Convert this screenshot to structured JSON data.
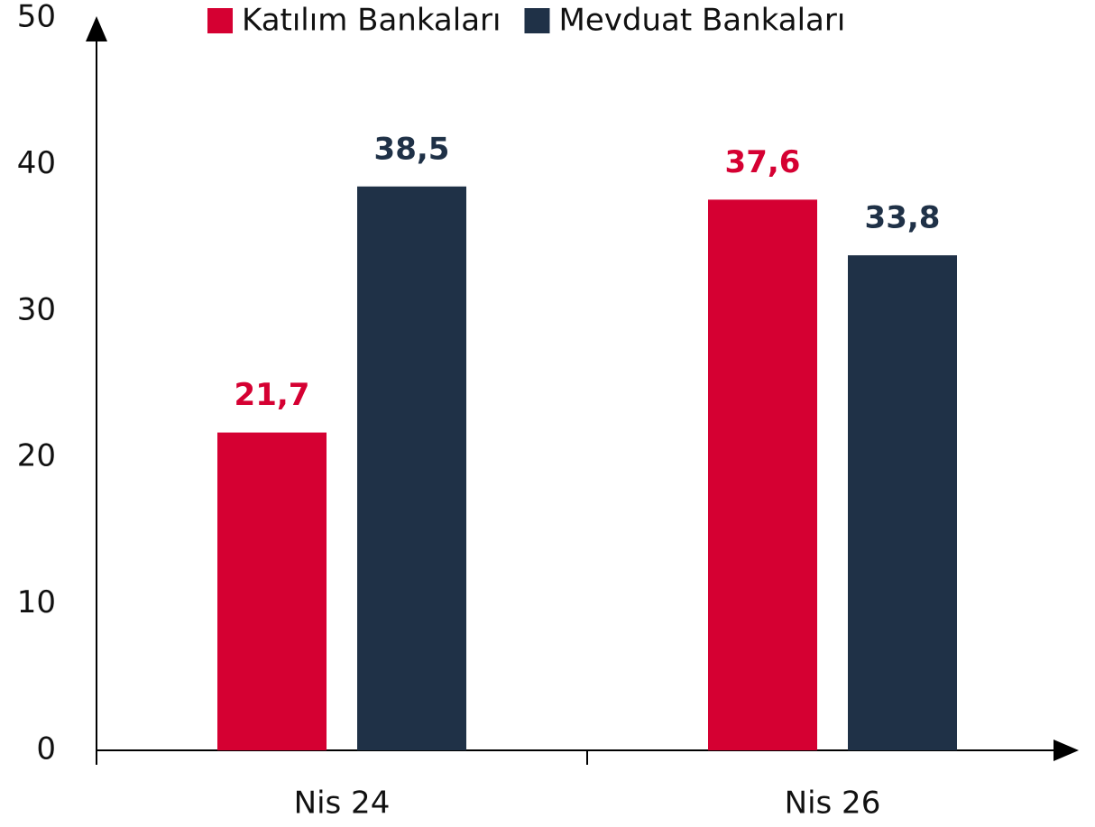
{
  "chart_data": {
    "type": "bar",
    "categories": [
      "Nis 24",
      "Nis 26"
    ],
    "series": [
      {
        "name": "Katılım Bankaları",
        "color": "#d50032",
        "values": [
          21.7,
          37.6
        ],
        "value_labels": [
          "21,7",
          "37,6"
        ]
      },
      {
        "name": "Mevduat Bankaları",
        "color": "#1f3147",
        "values": [
          38.5,
          33.8
        ],
        "value_labels": [
          "38,5",
          "33,8"
        ]
      }
    ],
    "ylim": [
      0,
      50
    ],
    "yticks": [
      0,
      10,
      20,
      30,
      40,
      50
    ],
    "grid": false,
    "legend": "top"
  }
}
